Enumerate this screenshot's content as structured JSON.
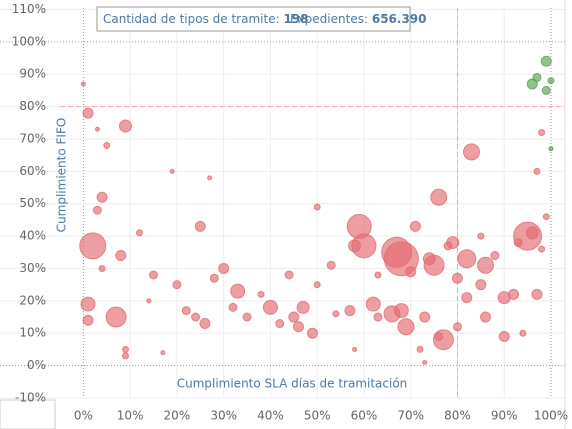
{
  "chart_data": {
    "type": "scatter",
    "header": [
      {
        "label": "Cantidad de tipos de tramite:",
        "value": "198"
      },
      {
        "label": "Expedientes:",
        "value": "656.390"
      }
    ],
    "xlabel": "Cumplimiento SLA días de tramitación",
    "ylabel": "Cumplimiento FIFO",
    "xlim": [
      -5,
      103
    ],
    "ylim": [
      -10,
      112
    ],
    "xticks": [
      {
        "value": 0,
        "label": "0%"
      },
      {
        "value": 10,
        "label": "10%"
      },
      {
        "value": 20,
        "label": "20%"
      },
      {
        "value": 30,
        "label": "30%"
      },
      {
        "value": 40,
        "label": "40%"
      },
      {
        "value": 50,
        "label": "50%"
      },
      {
        "value": 60,
        "label": "60%"
      },
      {
        "value": 70,
        "label": "70%"
      },
      {
        "value": 80,
        "label": "80%"
      },
      {
        "value": 90,
        "label": "90%"
      },
      {
        "value": 100,
        "label": "100%"
      }
    ],
    "yticks": [
      {
        "value": -10,
        "label": "-10%"
      },
      {
        "value": 0,
        "label": "0%"
      },
      {
        "value": 10,
        "label": "10%"
      },
      {
        "value": 20,
        "label": "20%"
      },
      {
        "value": 30,
        "label": "30%"
      },
      {
        "value": 40,
        "label": "40%"
      },
      {
        "value": 50,
        "label": "50%"
      },
      {
        "value": 60,
        "label": "60%"
      },
      {
        "value": 70,
        "label": "70%"
      },
      {
        "value": 80,
        "label": "80%"
      },
      {
        "value": 90,
        "label": "90%"
      },
      {
        "value": 100,
        "label": "100%"
      },
      {
        "value": 110,
        "label": "110%"
      }
    ],
    "grid": true,
    "reference_lines": {
      "x": 80,
      "y": 80,
      "color": "#f4a6ad"
    },
    "series": [
      {
        "color": "#e46a72",
        "x": [
          2,
          59,
          60,
          67,
          68,
          95,
          77,
          75,
          82,
          86,
          76,
          83,
          7,
          1,
          9,
          69,
          66,
          68,
          62,
          58,
          33,
          40,
          47,
          46,
          45,
          49,
          57,
          74,
          73,
          79,
          80,
          82,
          85,
          92,
          90,
          90,
          96,
          97,
          30,
          25,
          26,
          28,
          8,
          4,
          1,
          3,
          1,
          15,
          20,
          22,
          24,
          32,
          35,
          42,
          44,
          50,
          53,
          54,
          63,
          70,
          71,
          78,
          76,
          80,
          86,
          88,
          93,
          98,
          97,
          0,
          9,
          9,
          17,
          14,
          12,
          38,
          4,
          5,
          3,
          27,
          50,
          19,
          63,
          58,
          98,
          99,
          73,
          72,
          85,
          94
        ],
        "y": [
          37,
          43,
          37,
          35,
          33,
          40,
          8,
          31,
          33,
          31,
          52,
          66,
          15,
          19,
          74,
          12,
          16,
          17,
          19,
          37,
          23,
          18,
          18,
          12,
          15,
          10,
          17,
          33,
          15,
          38,
          27,
          21,
          25,
          22,
          21,
          9,
          41,
          22,
          30,
          43,
          13,
          27,
          34,
          52,
          78,
          48,
          14,
          28,
          25,
          17,
          15,
          18,
          15,
          13,
          28,
          25,
          31,
          16,
          15,
          29,
          43,
          37,
          9,
          12,
          15,
          34,
          38,
          72,
          60,
          87,
          5,
          3,
          4,
          20,
          41,
          22,
          30,
          68,
          73,
          58,
          49,
          60,
          28,
          5,
          36,
          46,
          1,
          5,
          40,
          10
        ],
        "sizes": [
          13,
          12,
          12,
          15,
          17,
          14,
          10,
          10,
          9,
          8,
          8,
          8,
          10,
          7,
          6,
          8,
          8,
          7,
          7,
          6,
          7,
          7,
          6,
          5,
          5,
          5,
          5,
          6,
          5,
          6,
          5,
          5,
          5,
          5,
          6,
          5,
          6,
          5,
          5,
          5,
          5,
          4,
          5,
          5,
          5,
          4,
          5,
          4,
          4,
          4,
          4,
          4,
          4,
          4,
          4,
          3,
          4,
          3,
          4,
          5,
          5,
          4,
          4,
          4,
          5,
          4,
          4,
          3,
          3,
          2,
          3,
          3,
          2,
          2,
          3,
          3,
          3,
          3,
          2,
          2,
          3,
          2,
          3,
          2,
          3,
          3,
          2,
          3,
          3,
          3
        ]
      },
      {
        "color": "#59a14f",
        "x": [
          99,
          96,
          97,
          99,
          100,
          100
        ],
        "y": [
          94,
          87,
          89,
          85,
          88,
          67
        ],
        "sizes": [
          5,
          5,
          4,
          4,
          3,
          2
        ]
      }
    ]
  }
}
